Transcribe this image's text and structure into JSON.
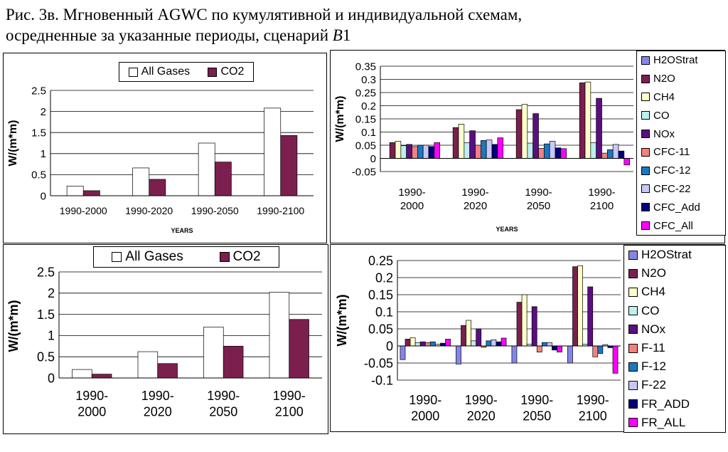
{
  "caption": {
    "line1": "Рис. 3в. Мгновенный AGWC по кумулятивной и индивидуальной схемам,",
    "line2_prefix": "осредненные за указанные периоды, сценарий ",
    "line2_italic": "B",
    "line2_suffix": "1"
  },
  "colors": {
    "all_gases": "#ffffff",
    "co2": "#7b1f4e",
    "H2OStrat": "#8585e8",
    "N2O": "#7b1f4e",
    "CH4": "#ffffcc",
    "CO": "#bfeeee",
    "NOx": "#5a0e80",
    "CFC-11": "#f58080",
    "CFC-12": "#1a78c0",
    "CFC-22": "#c8c8f5",
    "CFC_Add": "#00007a",
    "CFC_All": "#ff00ff"
  },
  "chart_data": [
    {
      "id": "top-left",
      "type": "bar",
      "categories": [
        "1990-2000",
        "1990-2020",
        "1990-2050",
        "1990-2100"
      ],
      "series": [
        {
          "name": "All Gases",
          "values": [
            0.23,
            0.66,
            1.25,
            2.08
          ]
        },
        {
          "name": "CO2",
          "values": [
            0.12,
            0.39,
            0.8,
            1.43
          ]
        }
      ],
      "ylabel": "W/(m*m)",
      "xlabel": "YEARS",
      "ylim": [
        0,
        2.5
      ],
      "yticks": [
        "0",
        "0.5",
        "1",
        "1.5",
        "2",
        "2.5"
      ],
      "grid": true,
      "legend": "top-center"
    },
    {
      "id": "top-right",
      "type": "bar",
      "categories": [
        "1990-\n2000",
        "1990-\n2020",
        "1990-\n2050",
        "1990-\n2100"
      ],
      "series": [
        {
          "name": "H2OStrat",
          "values": [
            0,
            0,
            0,
            0
          ]
        },
        {
          "name": "N2O",
          "values": [
            0.06,
            0.117,
            0.185,
            0.287
          ]
        },
        {
          "name": "CH4",
          "values": [
            0.065,
            0.13,
            0.205,
            0.29
          ]
        },
        {
          "name": "CO",
          "values": [
            0.048,
            0.06,
            0.058,
            0.06
          ]
        },
        {
          "name": "NOx",
          "values": [
            0.053,
            0.105,
            0.17,
            0.228
          ]
        },
        {
          "name": "CFC-11",
          "values": [
            0.045,
            0.05,
            0.038,
            0.02
          ]
        },
        {
          "name": "CFC-12",
          "values": [
            0.05,
            0.068,
            0.055,
            0.033
          ]
        },
        {
          "name": "CFC-22",
          "values": [
            0.05,
            0.07,
            0.065,
            0.053
          ]
        },
        {
          "name": "CFC_Add",
          "values": [
            0.045,
            0.053,
            0.04,
            0.028
          ]
        },
        {
          "name": "CFC_All",
          "values": [
            0.06,
            0.078,
            0.037,
            -0.025
          ]
        }
      ],
      "ylabel": "W/(m*m)",
      "xlabel": "YEARS",
      "ylim": [
        -0.05,
        0.35
      ],
      "yticks": [
        "-0.05",
        "0",
        "0.05",
        "0.1",
        "0.15",
        "0.2",
        "0.25",
        "0.3",
        "0.35"
      ],
      "grid": true,
      "legend": "right"
    },
    {
      "id": "bottom-left",
      "type": "bar",
      "categories": [
        "1990-\n2000",
        "1990-\n2020",
        "1990-\n2050",
        "1990-\n2100"
      ],
      "series": [
        {
          "name": "All Gases",
          "values": [
            0.2,
            0.62,
            1.2,
            2.02
          ]
        },
        {
          "name": "CO2",
          "values": [
            0.09,
            0.34,
            0.75,
            1.38
          ]
        }
      ],
      "ylabel": "W/(m*m)",
      "xlabel": "",
      "ylim": [
        0,
        2.5
      ],
      "yticks": [
        "0",
        "0.5",
        "1",
        "1.5",
        "2",
        "2.5"
      ],
      "grid": true,
      "legend": "top-center"
    },
    {
      "id": "bottom-right",
      "type": "bar",
      "categories": [
        "1990-\n2000",
        "1990-\n2020",
        "1990-\n2050",
        "1990-\n2100"
      ],
      "series": [
        {
          "name": "H2OStrat",
          "values": [
            -0.04,
            -0.053,
            -0.05,
            -0.05
          ]
        },
        {
          "name": "N2O",
          "values": [
            0.02,
            0.06,
            0.128,
            0.232
          ]
        },
        {
          "name": "CH4",
          "values": [
            0.024,
            0.075,
            0.15,
            0.235
          ]
        },
        {
          "name": "CO",
          "values": [
            0.01,
            0.015,
            0.005,
            0.005
          ]
        },
        {
          "name": "NOx",
          "values": [
            0.012,
            0.05,
            0.115,
            0.173
          ]
        },
        {
          "name": "F-11",
          "values": [
            0.01,
            -0.004,
            -0.018,
            -0.032
          ]
        },
        {
          "name": "F-12",
          "values": [
            0.012,
            0.015,
            0.01,
            -0.022
          ]
        },
        {
          "name": "F-22",
          "values": [
            0.005,
            0.018,
            0.01,
            0.004
          ]
        },
        {
          "name": "FR_ADD",
          "values": [
            0.008,
            0.012,
            -0.012,
            -0.005
          ]
        },
        {
          "name": "FR_ALL",
          "values": [
            0.02,
            0.023,
            -0.018,
            -0.08
          ]
        }
      ],
      "ylabel": "W/(m*m)",
      "xlabel": "",
      "ylim": [
        -0.1,
        0.25
      ],
      "yticks": [
        "-0.1",
        "-0.05",
        "0",
        "0.05",
        "0.1",
        "0.15",
        "0.2",
        "0.25"
      ],
      "grid": true,
      "legend": "right"
    }
  ]
}
